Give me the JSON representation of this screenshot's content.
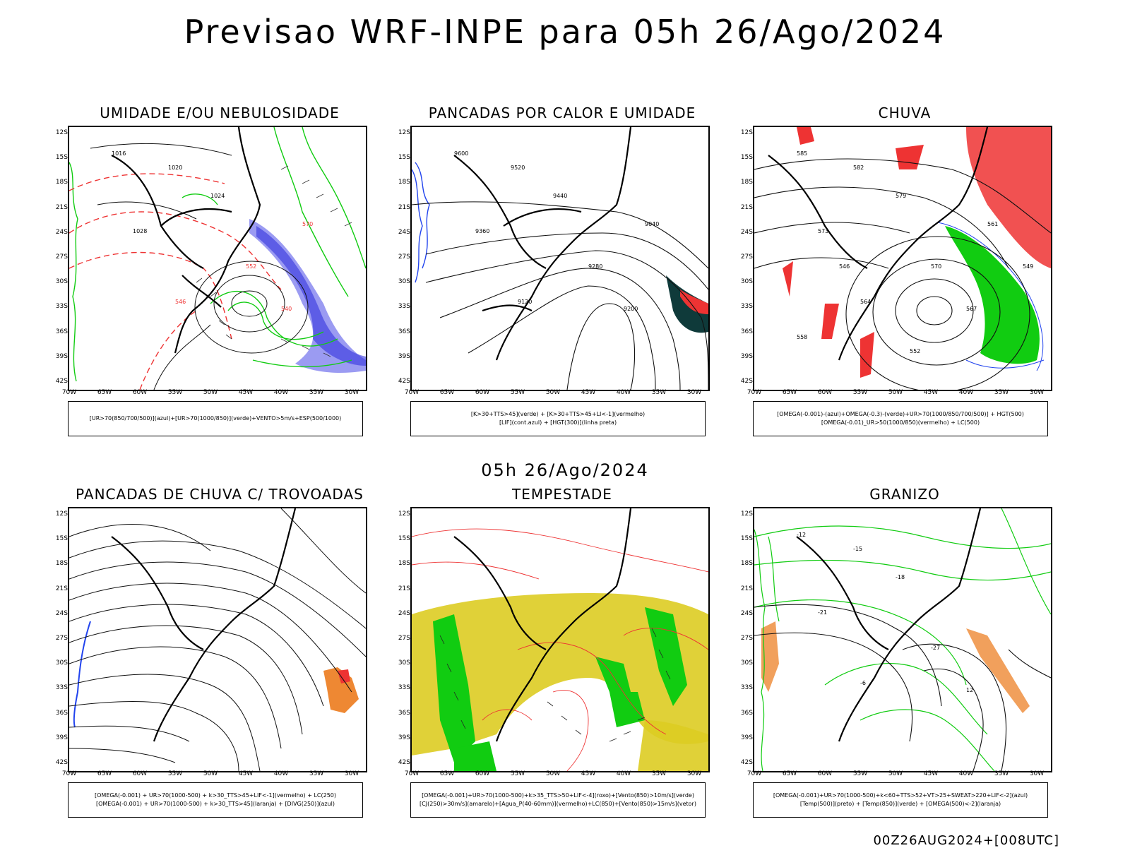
{
  "title": "Previsao WRF-INPE  para 05h 26/Ago/2024",
  "mid_date": "05h 26/Ago/2024",
  "footer": "00Z26AUG2024+[008UTC]",
  "lat_ticks": [
    "12S",
    "15S",
    "18S",
    "21S",
    "24S",
    "27S",
    "30S",
    "33S",
    "36S",
    "39S",
    "42S"
  ],
  "lon_ticks": [
    "70W",
    "65W",
    "60W",
    "55W",
    "50W",
    "45W",
    "40W",
    "35W",
    "30W"
  ],
  "panels": [
    {
      "title": "UMIDADE E/OU NEBULOSIDADE",
      "legend": [
        "[UR>70(850/700/500)](azul)+[UR>70(1000/850)](verde)+VENTO>5m/s+ESP(500/1000)"
      ],
      "labels": [
        "1016",
        "1020",
        "1024",
        "1028",
        "552",
        "540",
        "546",
        "570"
      ]
    },
    {
      "title": "PANCADAS POR CALOR E UMIDADE",
      "legend": [
        "[K>30+TTS>45](verde) + [K>30+TTS>45+LI<-1](vermelho)",
        "[LIF](cont.azul) + [HGT(300)](linha preta)"
      ],
      "labels": [
        "9600",
        "9520",
        "9440",
        "9360",
        "9280",
        "9200",
        "9120",
        "9040"
      ]
    },
    {
      "title": "CHUVA",
      "legend": [
        "[OMEGA(-0.001)-(azul)+OMEGA(-0.3)-(verde)+UR>70(1000/850/700/500)] + HGT(500)",
        "[OMEGA(-0.01)_UR>50(1000/850)(vermelho) + LC(500)"
      ],
      "labels": [
        "585",
        "582",
        "579",
        "573",
        "570",
        "567",
        "564",
        "561",
        "558",
        "552",
        "549",
        "546"
      ]
    },
    {
      "title": "PANCADAS DE CHUVA C/ TROVOADAS",
      "legend": [
        "[OMEGA(-0.001) + UR>70(1000-500) + k>30_TTS>45+LIF<-1](vermelho) + LC(250)",
        "[OMEGA(-0.001) + UR>70(1000-500) + k>30_TTS>45](laranja) + [DIVG(250)](azul)"
      ],
      "labels": []
    },
    {
      "title": "TEMPESTADE",
      "legend": [
        "[OMEGA(-0.001)+UR>70(1000-500)+k>35_TTS>50+LIF<-4](roxo)+[Vento(850)>10m/s](verde)",
        "[CJ(250)>30m/s](amarelo)+[Agua_P(40-60mm)](vermelho)+LC(850)+[Vento(850)>15m/s](vetor)"
      ],
      "labels": []
    },
    {
      "title": "GRANIZO",
      "legend": [
        "[OMEGA(-0.001)+UR>70(1000-500)+k<60+TTS>52+VT>25+SWEAT>220+LIF<-2](azul)",
        "[Temp(500)](preto) + [Temp(850)](verde) + [OMEGA(500)<-2](laranja)"
      ],
      "labels": [
        "-12",
        "-15",
        "-18",
        "-21",
        "-27",
        "12",
        "-6"
      ]
    }
  ],
  "colors": {
    "humid_blue": "#7a7aee",
    "humid_green": "#11cc11",
    "red": "#ee3333",
    "yellow": "#ddcc22",
    "orange": "#ee8833",
    "dark_teal": "#0f3a3a",
    "blue_contour": "#2244ee"
  }
}
